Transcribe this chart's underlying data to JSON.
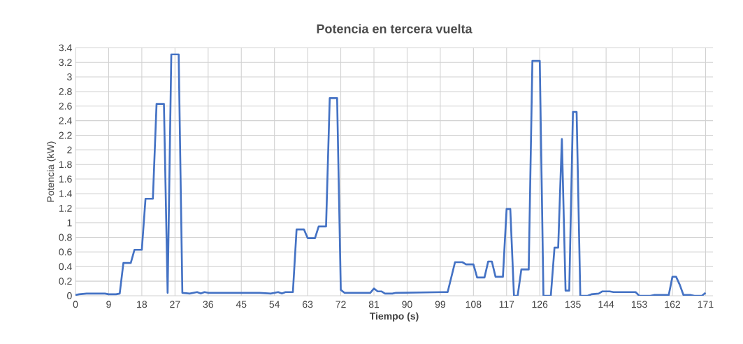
{
  "chart_data": {
    "type": "line",
    "title": "Potencia en tercera vuelta",
    "xlabel": "Tiempo (s)",
    "ylabel": "Potencia (kW)",
    "xlim": [
      0,
      173
    ],
    "ylim": [
      0,
      3.4
    ],
    "xticks": [
      0,
      9,
      18,
      27,
      36,
      45,
      54,
      63,
      72,
      81,
      90,
      99,
      108,
      117,
      126,
      135,
      144,
      153,
      162,
      171
    ],
    "yticks": [
      0,
      0.2,
      0.4,
      0.6,
      0.8,
      1,
      1.2,
      1.4,
      1.6,
      1.8,
      2,
      2.2,
      2.4,
      2.6,
      2.8,
      3,
      3.2,
      3.4
    ],
    "grid": true,
    "marker": "none",
    "line_style": "solid",
    "series": [
      {
        "color": "#4472c4",
        "x": [
          0,
          1,
          3,
          8,
          9,
          11,
          12,
          13,
          15,
          16,
          18,
          19,
          21,
          22,
          24,
          25,
          26,
          28,
          29,
          31,
          33,
          34,
          35,
          36,
          38,
          50,
          53,
          55,
          56,
          57,
          59,
          60,
          62,
          63,
          65,
          66,
          68,
          69,
          71,
          72,
          73,
          80,
          81,
          82,
          83,
          84,
          86,
          87,
          100,
          101,
          103,
          105,
          106,
          108,
          109,
          111,
          112,
          113,
          114,
          116,
          117,
          118,
          119,
          120,
          121,
          123,
          124,
          126,
          127,
          129,
          130,
          131,
          132,
          133,
          134,
          135,
          136,
          137,
          139,
          140,
          142,
          143,
          145,
          146,
          152,
          153,
          156,
          157,
          161,
          162,
          163,
          164,
          165,
          167,
          168,
          170,
          171
        ],
        "values": [
          0.01,
          0.02,
          0.03,
          0.03,
          0.02,
          0.02,
          0.03,
          0.45,
          0.45,
          0.63,
          0.63,
          1.33,
          1.33,
          2.63,
          2.63,
          0.04,
          3.31,
          3.31,
          0.04,
          0.03,
          0.05,
          0.03,
          0.05,
          0.04,
          0.04,
          0.04,
          0.03,
          0.05,
          0.03,
          0.05,
          0.05,
          0.91,
          0.91,
          0.79,
          0.79,
          0.95,
          0.95,
          2.71,
          2.71,
          0.08,
          0.04,
          0.04,
          0.1,
          0.06,
          0.06,
          0.03,
          0.03,
          0.04,
          0.05,
          0.05,
          0.46,
          0.46,
          0.43,
          0.43,
          0.25,
          0.25,
          0.47,
          0.47,
          0.26,
          0.26,
          1.19,
          1.19,
          0.0,
          0.0,
          0.36,
          0.36,
          3.22,
          3.22,
          0.0,
          0.0,
          0.66,
          0.66,
          2.15,
          0.07,
          0.07,
          2.52,
          2.52,
          0.0,
          0.0,
          0.02,
          0.03,
          0.06,
          0.06,
          0.05,
          0.05,
          0.0,
          0.0,
          0.01,
          0.01,
          0.26,
          0.26,
          0.15,
          0.01,
          0.01,
          0.0,
          0.0,
          0.04
        ]
      }
    ]
  }
}
